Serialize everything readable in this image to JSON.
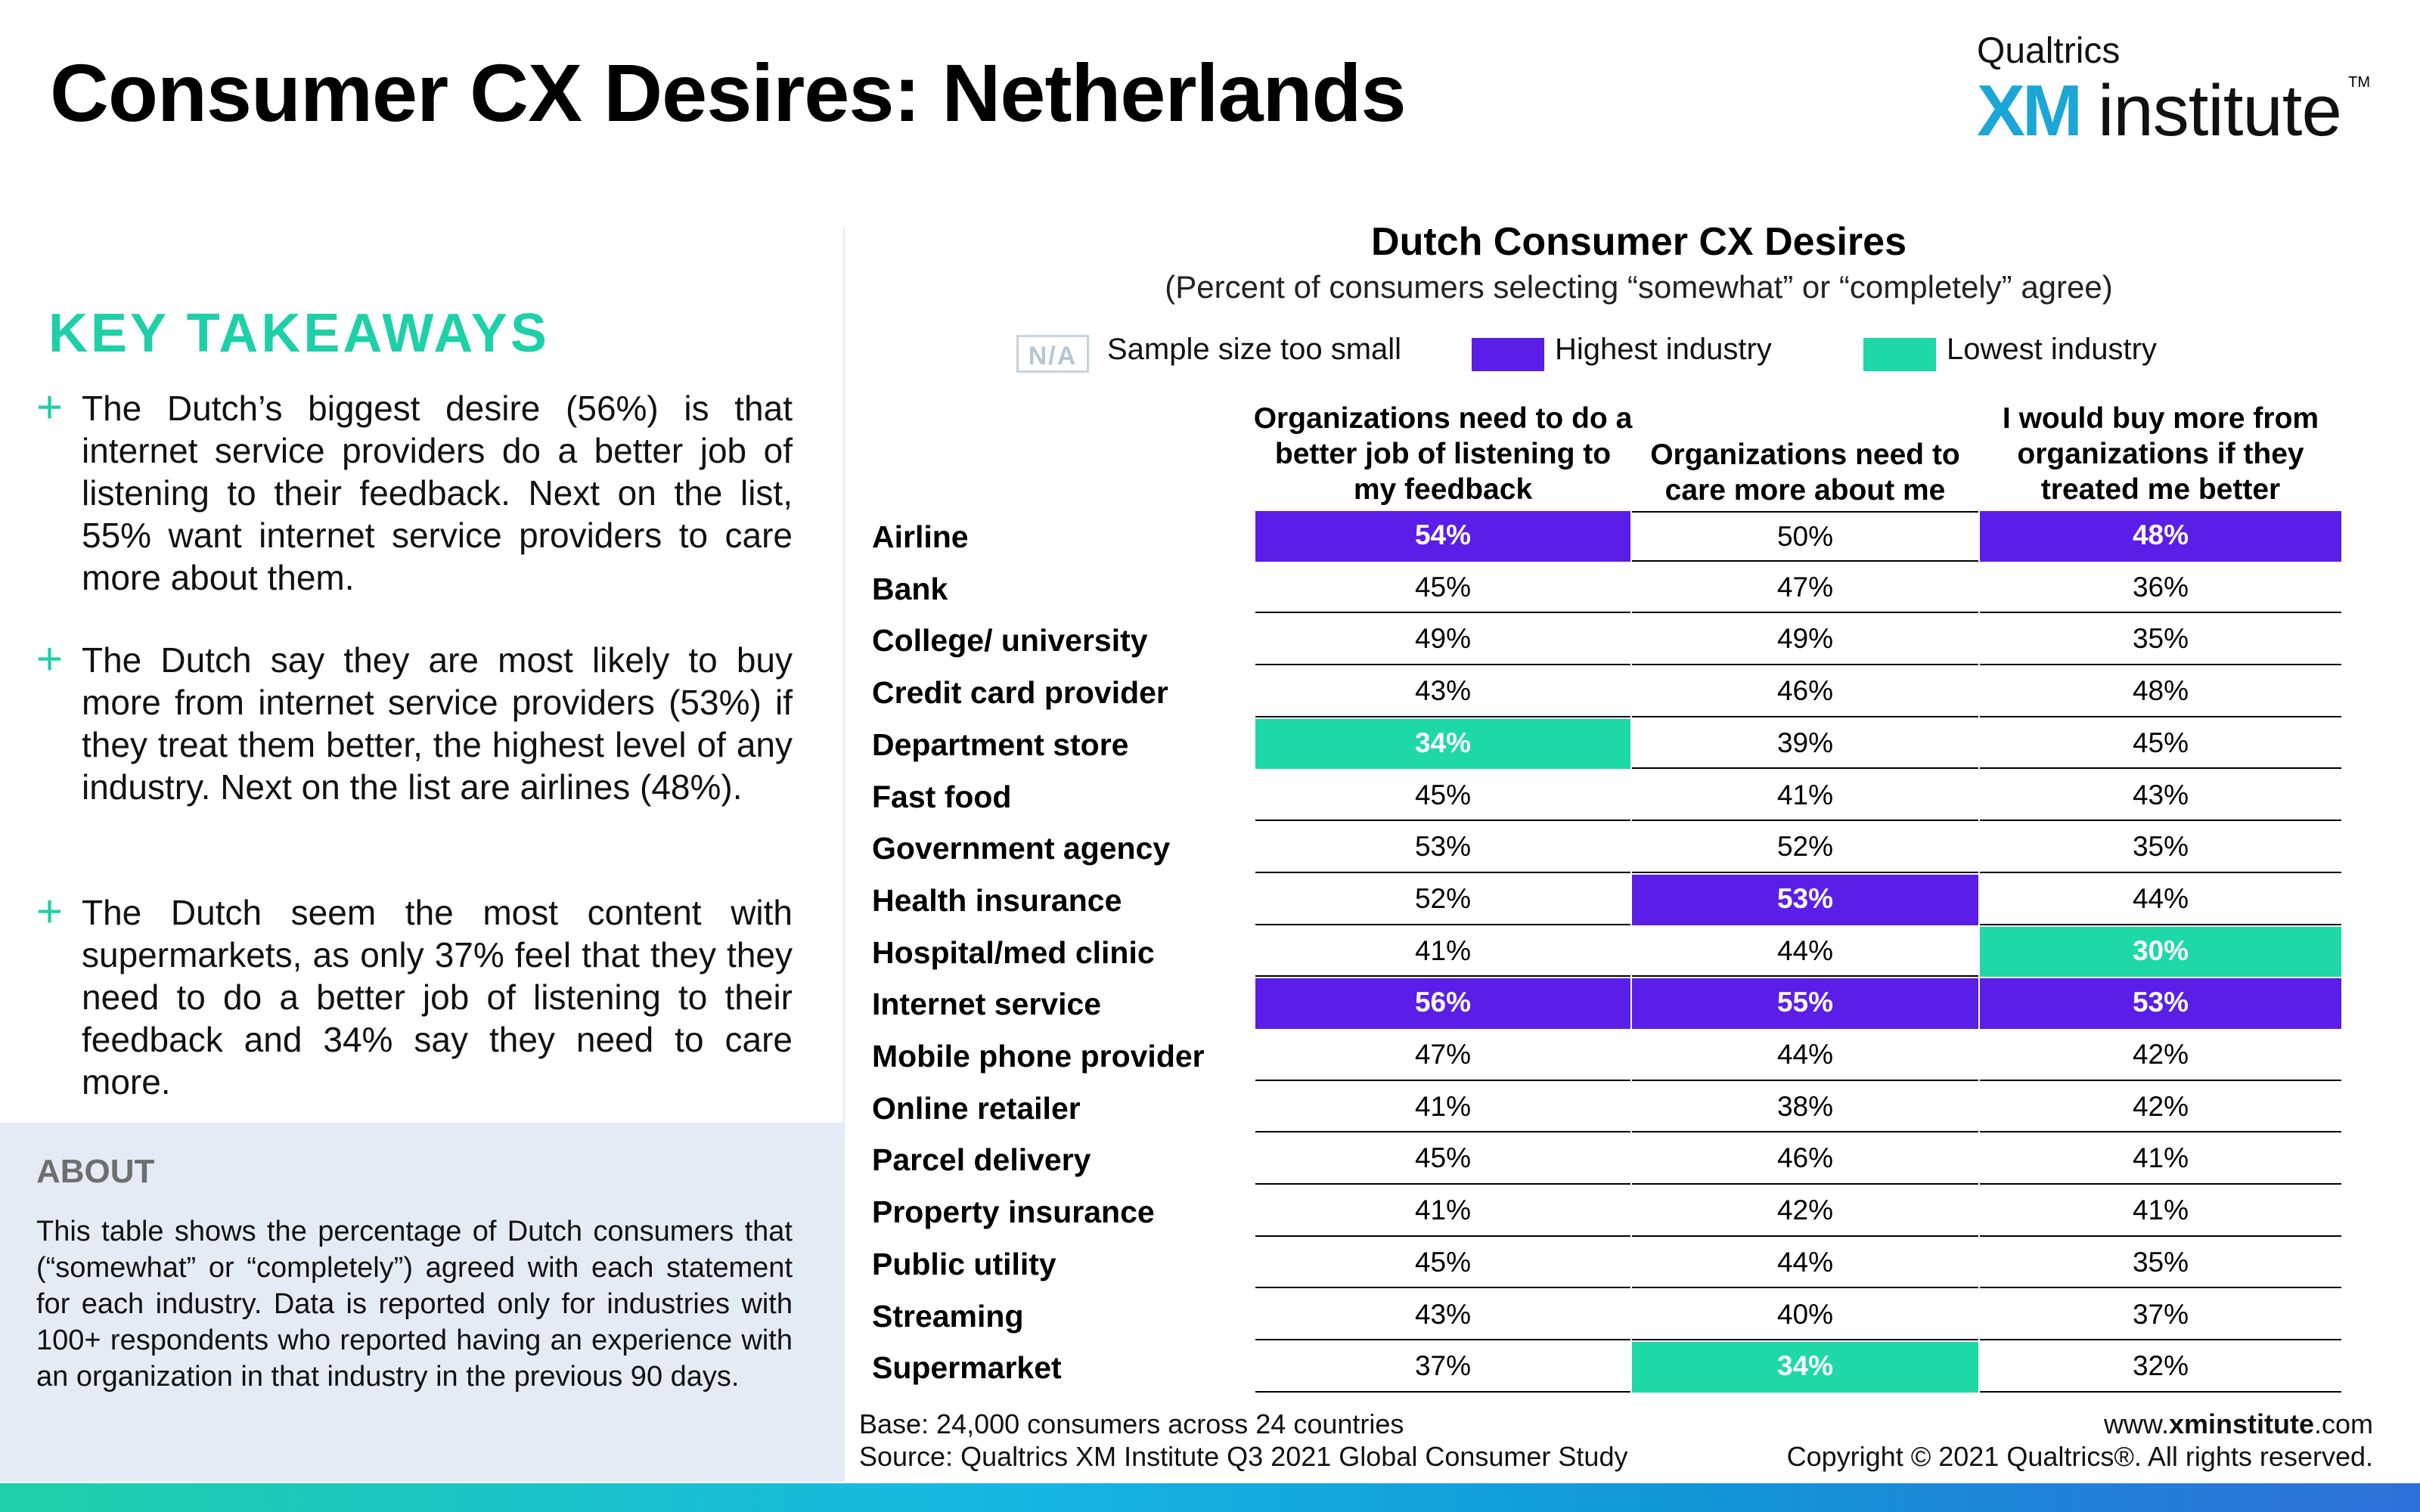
{
  "page": {
    "title": "Consumer CX Desires: Netherlands",
    "logo": {
      "top": "Qualtrics",
      "xm": "XM",
      "institute": "institute",
      "tm": "TM"
    }
  },
  "takeaways": {
    "heading": "KEY TAKEAWAYS",
    "items": [
      "The Dutch’s biggest desire (56%) is that internet service providers do a better job of listening to their feedback. Next on the list, 55% want internet service providers to care more about them.",
      "The Dutch say they are most likely to buy more from internet service providers (53%) if they treat them better, the highest level of any industry. Next on the list are airlines (48%).",
      "The Dutch seem the most content with supermarkets, as only 37% feel that they they need to do a better job of listening to their feedback and 34% say they need to care more."
    ]
  },
  "about": {
    "heading": "ABOUT",
    "text": "This table shows the percentage of Dutch consumers that (“somewhat” or “completely”) agreed with each statement for each industry. Data is reported only for industries with 100+ respondents who reported having an experience with an organization in that industry in the previous 90 days."
  },
  "colors": {
    "highest": "#5b1ee8",
    "lowest": "#1ed8a8"
  },
  "chart_data": {
    "type": "table",
    "title": "Dutch Consumer CX Desires",
    "subtitle": "(Percent of consumers selecting “somewhat” or “completely” agree)",
    "legend": {
      "na_badge": "N/A",
      "na_label": "Sample size too small",
      "highest_label": "Highest industry",
      "lowest_label": "Lowest industry"
    },
    "columns": [
      "Organizations need to do a better job of listening to my feedback",
      "Organizations need to care more about me",
      "I would buy more from organizations if they treated me better"
    ],
    "rows": [
      {
        "industry": "Airline",
        "values": [
          "54%",
          "50%",
          "48%"
        ],
        "highlight": [
          "high",
          "",
          "high"
        ]
      },
      {
        "industry": "Bank",
        "values": [
          "45%",
          "47%",
          "36%"
        ],
        "highlight": [
          "",
          "",
          ""
        ]
      },
      {
        "industry": "College/ university",
        "values": [
          "49%",
          "49%",
          "35%"
        ],
        "highlight": [
          "",
          "",
          ""
        ]
      },
      {
        "industry": "Credit card provider",
        "values": [
          "43%",
          "46%",
          "48%"
        ],
        "highlight": [
          "",
          "",
          ""
        ]
      },
      {
        "industry": "Department store",
        "values": [
          "34%",
          "39%",
          "45%"
        ],
        "highlight": [
          "low",
          "",
          ""
        ]
      },
      {
        "industry": "Fast food",
        "values": [
          "45%",
          "41%",
          "43%"
        ],
        "highlight": [
          "",
          "",
          ""
        ]
      },
      {
        "industry": "Government agency",
        "values": [
          "53%",
          "52%",
          "35%"
        ],
        "highlight": [
          "",
          "",
          ""
        ]
      },
      {
        "industry": "Health insurance",
        "values": [
          "52%",
          "53%",
          "44%"
        ],
        "highlight": [
          "",
          "high",
          ""
        ]
      },
      {
        "industry": "Hospital/med clinic",
        "values": [
          "41%",
          "44%",
          "30%"
        ],
        "highlight": [
          "",
          "",
          "low"
        ]
      },
      {
        "industry": "Internet service",
        "values": [
          "56%",
          "55%",
          "53%"
        ],
        "highlight": [
          "high",
          "high",
          "high"
        ]
      },
      {
        "industry": "Mobile phone provider",
        "values": [
          "47%",
          "44%",
          "42%"
        ],
        "highlight": [
          "",
          "",
          ""
        ]
      },
      {
        "industry": "Online retailer",
        "values": [
          "41%",
          "38%",
          "42%"
        ],
        "highlight": [
          "",
          "",
          ""
        ]
      },
      {
        "industry": "Parcel delivery",
        "values": [
          "45%",
          "46%",
          "41%"
        ],
        "highlight": [
          "",
          "",
          ""
        ]
      },
      {
        "industry": "Property insurance",
        "values": [
          "41%",
          "42%",
          "41%"
        ],
        "highlight": [
          "",
          "",
          ""
        ]
      },
      {
        "industry": "Public utility",
        "values": [
          "45%",
          "44%",
          "35%"
        ],
        "highlight": [
          "",
          "",
          ""
        ]
      },
      {
        "industry": "Streaming",
        "values": [
          "43%",
          "40%",
          "37%"
        ],
        "highlight": [
          "",
          "",
          ""
        ]
      },
      {
        "industry": "Supermarket",
        "values": [
          "37%",
          "34%",
          "32%"
        ],
        "highlight": [
          "",
          "low",
          ""
        ]
      }
    ]
  },
  "footer": {
    "base": "Base: 24,000 consumers across 24 countries",
    "source": "Source: Qualtrics XM Institute Q3 2021 Global Consumer Study",
    "url_prefix": "www.",
    "url_bold": "xminstitute",
    "url_suffix": ".com",
    "copyright": "Copyright © 2021 Qualtrics®. All rights reserved."
  }
}
